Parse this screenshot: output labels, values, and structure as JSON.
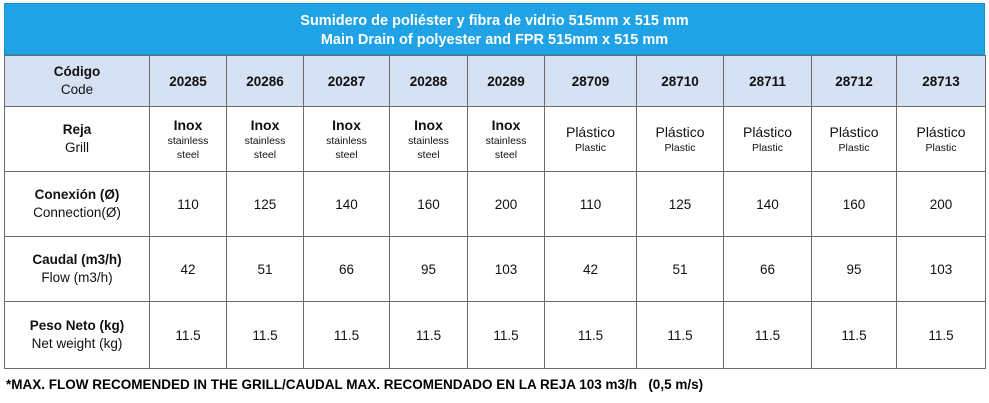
{
  "title": {
    "line1": "Sumidero de poliéster y fibra de vidrio 515mm x 515 mm",
    "line2": "Main Drain of polyester and FPR 515mm x 515 mm"
  },
  "colors": {
    "title_bg": "#1fa3e6",
    "header_bg": "#d6e1f4",
    "border": "#6c6c6c"
  },
  "rows": {
    "code": {
      "label_es": "Código",
      "label_en": "Code"
    },
    "grill": {
      "label_es": "Reja",
      "label_en": "Grill"
    },
    "connection": {
      "label_es": "Conexión  (Ø)",
      "label_en": "Connection(Ø)"
    },
    "flow": {
      "label_es": "Caudal (m3/h)",
      "label_en": "Flow (m3/h)"
    },
    "weight": {
      "label_es": "Peso Neto (kg)",
      "label_en": "Net weight (kg)"
    }
  },
  "codes": [
    "20285",
    "20286",
    "20287",
    "20288",
    "20289",
    "28709",
    "28710",
    "28711",
    "28712",
    "28713"
  ],
  "grills": [
    {
      "main": "Inox",
      "sub1": "stainless",
      "sub2": "steel"
    },
    {
      "main": "Inox",
      "sub1": "stainless",
      "sub2": "steel"
    },
    {
      "main": "Inox",
      "sub1": "stainless",
      "sub2": "steel"
    },
    {
      "main": "Inox",
      "sub1": "stainless",
      "sub2": "steel"
    },
    {
      "main": "Inox",
      "sub1": "stainless",
      "sub2": "steel"
    },
    {
      "main": "Plástico",
      "sub1": "Plastic",
      "sub2": ""
    },
    {
      "main": "Plástico",
      "sub1": "Plastic",
      "sub2": ""
    },
    {
      "main": "Plástico",
      "sub1": "Plastic",
      "sub2": ""
    },
    {
      "main": "Plástico",
      "sub1": "Plastic",
      "sub2": ""
    },
    {
      "main": "Plástico",
      "sub1": "Plastic",
      "sub2": ""
    }
  ],
  "connections": [
    "110",
    "125",
    "140",
    "160",
    "200",
    "110",
    "125",
    "140",
    "160",
    "200"
  ],
  "flows": [
    "42",
    "51",
    "66",
    "95",
    "103",
    "42",
    "51",
    "66",
    "95",
    "103"
  ],
  "weights": [
    "11.5",
    "11.5",
    "11.5",
    "11.5",
    "11.5",
    "11.5",
    "11.5",
    "11.5",
    "11.5",
    "11.5"
  ],
  "note": {
    "text": "*MAX. FLOW RECOMENDED IN THE GRILL/CAUDAL MAX. RECOMENDADO EN LA REJA 103 m3/h",
    "speed": "(0,5 m/s)"
  }
}
